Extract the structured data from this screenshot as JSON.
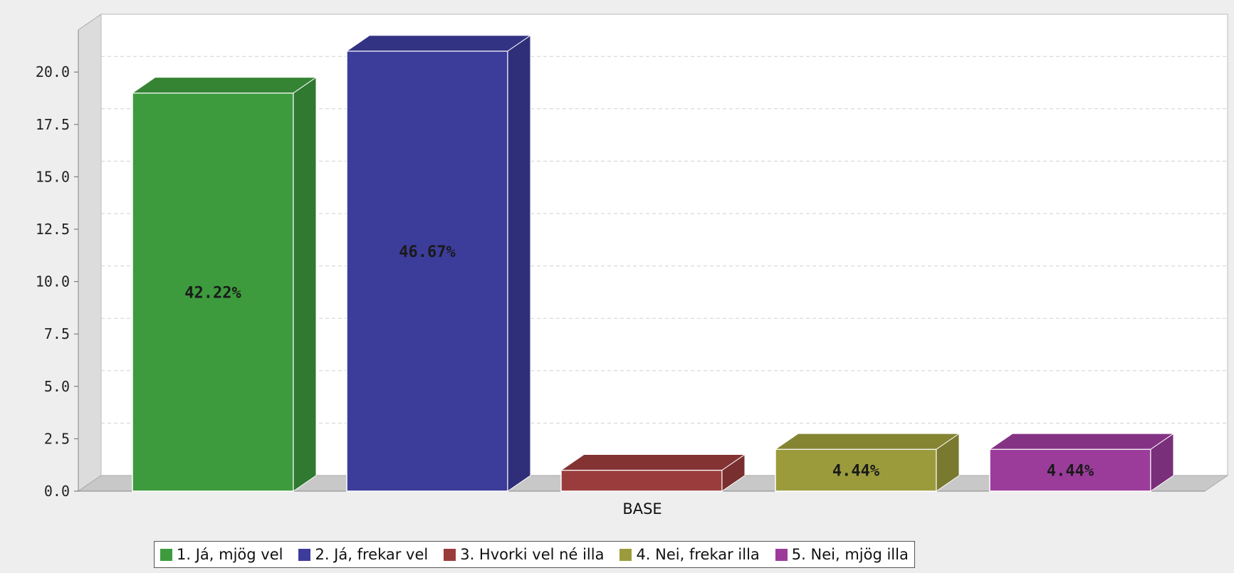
{
  "chart_data": {
    "type": "bar",
    "categories": [
      "BASE"
    ],
    "series": [
      {
        "name": "1. Já, mjög vel",
        "values": [
          19
        ],
        "label": "42.22%",
        "color": "#3d9b3d"
      },
      {
        "name": "2. Já, frekar vel",
        "values": [
          21
        ],
        "label": "46.67%",
        "color": "#3c3c9b"
      },
      {
        "name": "3. Hvorki vel né illa",
        "values": [
          1
        ],
        "label": "",
        "color": "#9b3c3c"
      },
      {
        "name": "4. Nei, frekar illa",
        "values": [
          2
        ],
        "label": "4.44%",
        "color": "#9b9b3c"
      },
      {
        "name": "5. Nei, mjög illa",
        "values": [
          2
        ],
        "label": "4.44%",
        "color": "#9b3c9b"
      }
    ],
    "yticks": [
      "0.0",
      "2.5",
      "5.0",
      "7.5",
      "10.0",
      "12.5",
      "15.0",
      "17.5",
      "20.0"
    ],
    "ylim": [
      0,
      22.5
    ],
    "grid": true,
    "legend_position": "bottom"
  }
}
